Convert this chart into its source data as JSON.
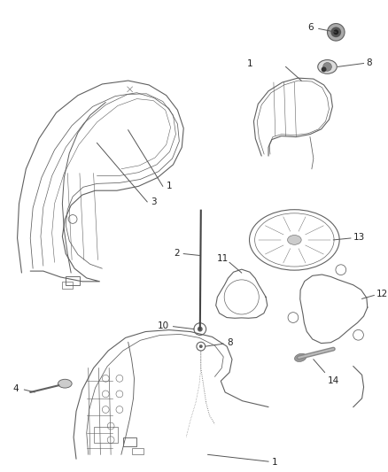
{
  "bg_color": "#ffffff",
  "lc": "#606060",
  "lw": 0.8,
  "fs": 7.5,
  "figsize": [
    4.38,
    5.33
  ],
  "dpi": 100,
  "xlim": [
    0,
    438
  ],
  "ylim": [
    0,
    533
  ]
}
